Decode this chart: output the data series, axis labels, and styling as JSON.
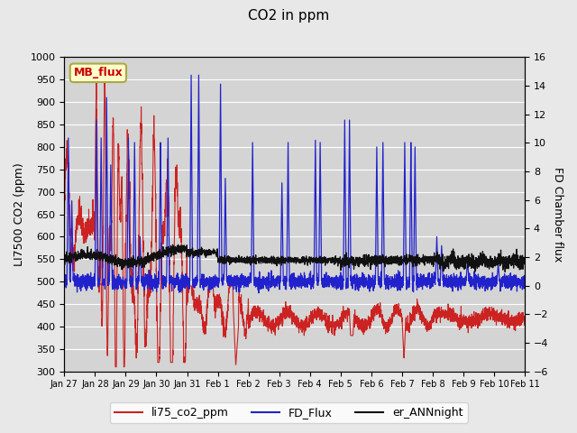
{
  "title": "CO2 in ppm",
  "ylabel_left": "LI7500 CO2 (ppm)",
  "ylabel_right": "FD Chamber flux",
  "ylim_left": [
    300,
    1000
  ],
  "ylim_right": [
    -6,
    16
  ],
  "yticks_left": [
    300,
    350,
    400,
    450,
    500,
    550,
    600,
    650,
    700,
    750,
    800,
    850,
    900,
    950,
    1000
  ],
  "yticks_right": [
    -6,
    -4,
    -2,
    0,
    2,
    4,
    6,
    8,
    10,
    12,
    14,
    16
  ],
  "bg_color": "#e8e8e8",
  "plot_bg_color": "#d4d4d4",
  "grid_color": "#ffffff",
  "legend_labels": [
    "li75_co2_ppm",
    "FD_Flux",
    "er_ANNnight"
  ],
  "legend_colors": [
    "#cc2222",
    "#2222cc",
    "#111111"
  ],
  "annotation_text": "MB_flux",
  "annotation_color": "#cc0000",
  "annotation_bg": "#ffffcc",
  "annotation_border": "#aaaa44",
  "num_points": 3360
}
